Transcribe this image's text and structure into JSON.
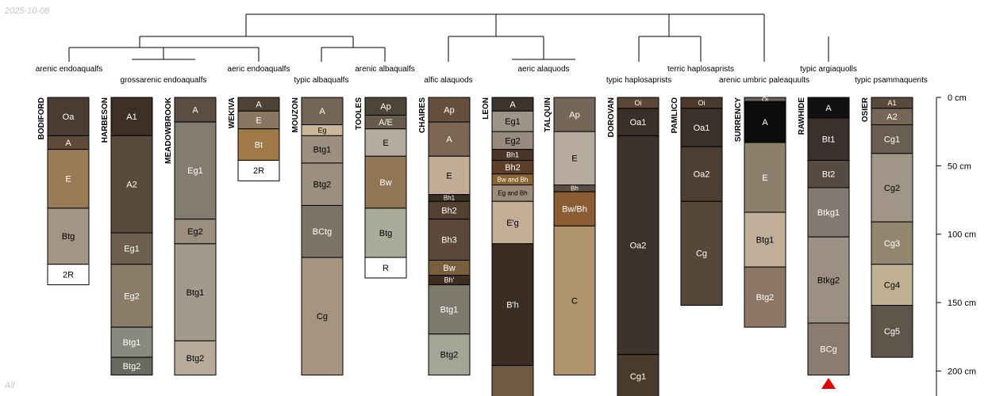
{
  "date": "2025-10-08",
  "filter_label": "All",
  "depth_axis": {
    "unit": "cm",
    "max": 220,
    "ticks": [
      {
        "value": 0,
        "label": "0 cm"
      },
      {
        "value": 50,
        "label": "50 cm"
      },
      {
        "value": 100,
        "label": "100 cm"
      },
      {
        "value": 150,
        "label": "150 cm"
      },
      {
        "value": 200,
        "label": "200 cm"
      }
    ]
  },
  "classification_labels": [
    {
      "id": "l-aren-endo",
      "text": "arenic endoaqualfs"
    },
    {
      "id": "l-gross-endo",
      "text": "grossarenic endoaqualfs"
    },
    {
      "id": "l-aeric-endo",
      "text": "aeric endoaqualfs"
    },
    {
      "id": "l-typic-alba",
      "text": "typic albaqualfs"
    },
    {
      "id": "l-aren-alba",
      "text": "arenic albaqualfs"
    },
    {
      "id": "l-alfic-ala",
      "text": "alfic alaquods"
    },
    {
      "id": "l-aeric-ala",
      "text": "aeric alaquods"
    },
    {
      "id": "l-typic-haplo",
      "text": "typic haplosaprists"
    },
    {
      "id": "l-terric-haplo",
      "text": "terric haplosaprists"
    },
    {
      "id": "l-aren-umb",
      "text": "arenic umbric paleaquults"
    },
    {
      "id": "l-typic-argi",
      "text": "typic argiaquolls"
    },
    {
      "id": "l-typic-psamm",
      "text": "typic psammaquents"
    }
  ],
  "profiles": [
    {
      "name": "BODIFORD",
      "horizons": [
        {
          "name": "Oa",
          "top": 0,
          "bottom": 28,
          "color": "#4a3b33"
        },
        {
          "name": "A",
          "top": 28,
          "bottom": 38,
          "color": "#5e4b37"
        },
        {
          "name": "E",
          "top": 38,
          "bottom": 81,
          "color": "#9b7a56"
        },
        {
          "name": "Btg",
          "top": 81,
          "bottom": 122,
          "color": "#a59585"
        },
        {
          "name": "2R",
          "top": 122,
          "bottom": 137,
          "color": "#ffffff"
        }
      ]
    },
    {
      "name": "HARBESON",
      "horizons": [
        {
          "name": "A1",
          "top": 0,
          "bottom": 28,
          "color": "#3e3024"
        },
        {
          "name": "A2",
          "top": 28,
          "bottom": 99,
          "color": "#5a4a3b"
        },
        {
          "name": "Eg1",
          "top": 99,
          "bottom": 122,
          "color": "#6e5f4f"
        },
        {
          "name": "Eg2",
          "top": 122,
          "bottom": 168,
          "color": "#8b7b69"
        },
        {
          "name": "Btg1",
          "top": 168,
          "bottom": 190,
          "color": "#868b7d"
        },
        {
          "name": "Btg2",
          "top": 190,
          "bottom": 203,
          "color": "#676a5e"
        }
      ]
    },
    {
      "name": "MEADOWBROOK",
      "horizons": [
        {
          "name": "A",
          "top": 0,
          "bottom": 18,
          "color": "#5a4d41"
        },
        {
          "name": "Eg1",
          "top": 18,
          "bottom": 89,
          "color": "#857b70"
        },
        {
          "name": "Eg2",
          "top": 89,
          "bottom": 107,
          "color": "#9b8e7e"
        },
        {
          "name": "Btg1",
          "top": 107,
          "bottom": 178,
          "color": "#a39a8c"
        },
        {
          "name": "Btg2",
          "top": 178,
          "bottom": 203,
          "color": "#b7ac9c"
        }
      ]
    },
    {
      "name": "WEKIVA",
      "horizons": [
        {
          "name": "A",
          "top": 0,
          "bottom": 10,
          "color": "#4e4235"
        },
        {
          "name": "E",
          "top": 10,
          "bottom": 23,
          "color": "#8a7763"
        },
        {
          "name": "Bt",
          "top": 23,
          "bottom": 46,
          "color": "#a07a46"
        },
        {
          "name": "2R",
          "top": 46,
          "bottom": 61,
          "color": "#ffffff"
        }
      ]
    },
    {
      "name": "MOUZON",
      "horizons": [
        {
          "name": "A",
          "top": 0,
          "bottom": 20,
          "color": "#746555"
        },
        {
          "name": "Eg",
          "top": 20,
          "bottom": 28,
          "color": "#cbb79a"
        },
        {
          "name": "Btg1",
          "top": 28,
          "bottom": 48,
          "color": "#9c8f80"
        },
        {
          "name": "Btg2",
          "top": 48,
          "bottom": 79,
          "color": "#9b9080"
        },
        {
          "name": "BCtg",
          "top": 79,
          "bottom": 117,
          "color": "#7d7266"
        },
        {
          "name": "Cg",
          "top": 117,
          "bottom": 203,
          "color": "#a49480"
        }
      ]
    },
    {
      "name": "TOOLES",
      "horizons": [
        {
          "name": "Ap",
          "top": 0,
          "bottom": 13,
          "color": "#4e4539"
        },
        {
          "name": "A/E",
          "top": 13,
          "bottom": 23,
          "color": "#675b4d"
        },
        {
          "name": "E",
          "top": 23,
          "bottom": 43,
          "color": "#b4aa9d"
        },
        {
          "name": "Bw",
          "top": 43,
          "bottom": 81,
          "color": "#927656"
        },
        {
          "name": "Btg",
          "top": 81,
          "bottom": 117,
          "color": "#abab9b"
        },
        {
          "name": "R",
          "top": 117,
          "bottom": 132,
          "color": "#ffffff"
        }
      ]
    },
    {
      "name": "CHAIRES",
      "horizons": [
        {
          "name": "Ap",
          "top": 0,
          "bottom": 18,
          "color": "#654f3d"
        },
        {
          "name": "A",
          "top": 18,
          "bottom": 43,
          "color": "#7b6653"
        },
        {
          "name": "E",
          "top": 43,
          "bottom": 71,
          "color": "#c2ac96"
        },
        {
          "name": "Bh1",
          "top": 71,
          "bottom": 76,
          "color": "#3a2d23"
        },
        {
          "name": "Bh2",
          "top": 76,
          "bottom": 89,
          "color": "#54402f"
        },
        {
          "name": "Bh3",
          "top": 89,
          "bottom": 119,
          "color": "#5c4939"
        },
        {
          "name": "Bw",
          "top": 119,
          "bottom": 130,
          "color": "#7a5f3c"
        },
        {
          "name": "Bh'",
          "top": 130,
          "bottom": 137,
          "color": "#3e2f24"
        },
        {
          "name": "Btg1",
          "top": 137,
          "bottom": 173,
          "color": "#7d7b6d"
        },
        {
          "name": "Btg2",
          "top": 173,
          "bottom": 203,
          "color": "#a3a696"
        }
      ]
    },
    {
      "name": "LEON",
      "horizons": [
        {
          "name": "A",
          "top": 0,
          "bottom": 10,
          "color": "#3d342e"
        },
        {
          "name": "Eg1",
          "top": 10,
          "bottom": 25,
          "color": "#9e9488"
        },
        {
          "name": "Eg2",
          "top": 25,
          "bottom": 38,
          "color": "#978b80"
        },
        {
          "name": "Bh1",
          "top": 38,
          "bottom": 46,
          "color": "#4a3626"
        },
        {
          "name": "Bh2",
          "top": 46,
          "bottom": 56,
          "color": "#5d3f27"
        },
        {
          "name": "Bw and Bh",
          "top": 56,
          "bottom": 64,
          "color": "#8a6433"
        },
        {
          "name": "Eg and Bh",
          "top": 64,
          "bottom": 76,
          "color": "#9b8c7a"
        },
        {
          "name": "E'g",
          "top": 76,
          "bottom": 107,
          "color": "#c4ac97"
        },
        {
          "name": "B'h",
          "top": 107,
          "bottom": 196,
          "color": "#3a2d23"
        },
        {
          "name": "",
          "top": 196,
          "bottom": 220,
          "color": "#705a44"
        }
      ]
    },
    {
      "name": "TALQUIN",
      "horizons": [
        {
          "name": "Ap",
          "top": 0,
          "bottom": 25,
          "color": "#746758"
        },
        {
          "name": "E",
          "top": 25,
          "bottom": 64,
          "color": "#b6aa9c"
        },
        {
          "name": "Bh",
          "top": 64,
          "bottom": 69,
          "color": "#5b4d42"
        },
        {
          "name": "Bw/Bh",
          "top": 69,
          "bottom": 94,
          "color": "#8c5d35"
        },
        {
          "name": "C",
          "top": 94,
          "bottom": 203,
          "color": "#ae936d"
        }
      ]
    },
    {
      "name": "DOROVAN",
      "horizons": [
        {
          "name": "Oi",
          "top": 0,
          "bottom": 8,
          "color": "#5a4737"
        },
        {
          "name": "Oa1",
          "top": 8,
          "bottom": 28,
          "color": "#3b3028"
        },
        {
          "name": "Oa2",
          "top": 28,
          "bottom": 188,
          "color": "#3d332c"
        },
        {
          "name": "Cg1",
          "top": 188,
          "bottom": 220,
          "color": "#4a3a2c"
        }
      ]
    },
    {
      "name": "PAMLICO",
      "horizons": [
        {
          "name": "Oi",
          "top": 0,
          "bottom": 8,
          "color": "#4b3a2c"
        },
        {
          "name": "Oa1",
          "top": 8,
          "bottom": 36,
          "color": "#3b302a"
        },
        {
          "name": "Oa2",
          "top": 36,
          "bottom": 76,
          "color": "#4e3f33"
        },
        {
          "name": "Cg",
          "top": 76,
          "bottom": 152,
          "color": "#564739"
        }
      ]
    },
    {
      "name": "SURRENCY",
      "horizons": [
        {
          "name": "Oi",
          "top": 0,
          "bottom": 3,
          "color": "#6a6156"
        },
        {
          "name": "A",
          "top": 3,
          "bottom": 33,
          "color": "#0c0c0c"
        },
        {
          "name": "E",
          "top": 33,
          "bottom": 84,
          "color": "#8c7f6b"
        },
        {
          "name": "Btg1",
          "top": 84,
          "bottom": 124,
          "color": "#c1ae98"
        },
        {
          "name": "Btg2",
          "top": 124,
          "bottom": 168,
          "color": "#8c7767"
        }
      ]
    },
    {
      "name": "RAWHIDE",
      "horizons": [
        {
          "name": "A",
          "top": 0,
          "bottom": 15,
          "color": "#111111"
        },
        {
          "name": "Bt1",
          "top": 15,
          "bottom": 46,
          "color": "#3b302b"
        },
        {
          "name": "Bt2",
          "top": 46,
          "bottom": 66,
          "color": "#574a40"
        },
        {
          "name": "Btkg1",
          "top": 66,
          "bottom": 102,
          "color": "#857a71"
        },
        {
          "name": "Btkg2",
          "top": 102,
          "bottom": 165,
          "color": "#9c9084"
        },
        {
          "name": "BCg",
          "top": 165,
          "bottom": 203,
          "color": "#8a7c70"
        }
      ]
    },
    {
      "name": "OSIER",
      "horizons": [
        {
          "name": "A1",
          "top": 0,
          "bottom": 8,
          "color": "#5a4a3c"
        },
        {
          "name": "A2",
          "top": 8,
          "bottom": 20,
          "color": "#756657"
        },
        {
          "name": "Cg1",
          "top": 20,
          "bottom": 41,
          "color": "#6b5f54"
        },
        {
          "name": "Cg2",
          "top": 41,
          "bottom": 91,
          "color": "#a19588"
        },
        {
          "name": "Cg3",
          "top": 91,
          "bottom": 122,
          "color": "#948770"
        },
        {
          "name": "Cg4",
          "top": 122,
          "bottom": 152,
          "color": "#c0b092"
        },
        {
          "name": "Cg5",
          "top": 152,
          "bottom": 190,
          "color": "#5f554b"
        }
      ]
    }
  ],
  "truncated_marker": {
    "profile": "RAWHIDE",
    "color": "#e00000"
  }
}
